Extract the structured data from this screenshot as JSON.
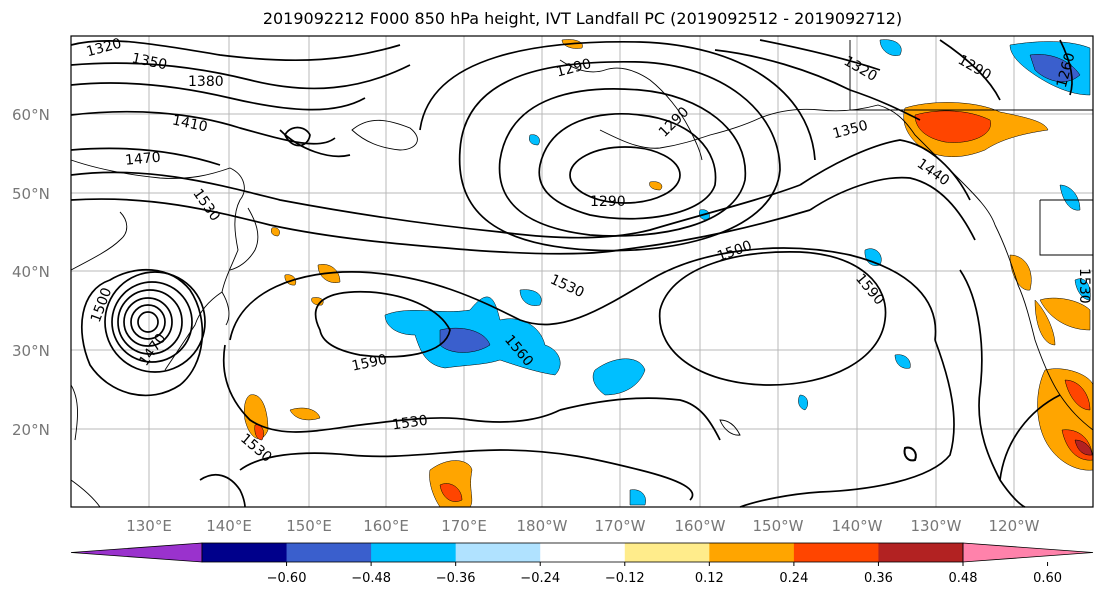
{
  "title": "2019092212 F000 850 hPa height, IVT Landfall PC (2019092512 - 2019092712)",
  "lat_labels": [
    "60°N",
    "50°N",
    "40°N",
    "30°N",
    "20°N"
  ],
  "lon_labels": [
    "130°E",
    "140°E",
    "150°E",
    "160°E",
    "170°E",
    "180°W",
    "170°W",
    "160°W",
    "150°W",
    "140°W",
    "130°W",
    "120°W"
  ],
  "contour_labels": [
    "1320",
    "1350",
    "1380",
    "1410",
    "1470",
    "1530",
    "1500",
    "1470",
    "1590",
    "1560",
    "1530",
    "1530",
    "1290",
    "1290",
    "1290",
    "1320",
    "1350",
    "1440",
    "1500",
    "1530",
    "1590",
    "1530",
    "1290",
    "1260"
  ],
  "colorbar": {
    "ticks": [
      "−0.60",
      "−0.48",
      "−0.36",
      "−0.24",
      "−0.12",
      "0.12",
      "0.24",
      "0.36",
      "0.48",
      "0.60"
    ],
    "colors": [
      "#9a32cd",
      "#00008b",
      "#3a5fcd",
      "#00bfff",
      "#b0e2ff",
      "#ffffff",
      "#ffec8b",
      "#ffa500",
      "#ff4500",
      "#b22222",
      "#ff82ab"
    ]
  }
}
